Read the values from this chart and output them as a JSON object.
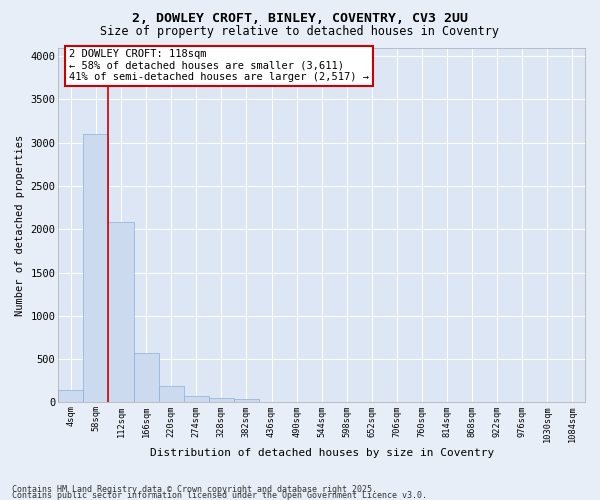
{
  "title_line1": "2, DOWLEY CROFT, BINLEY, COVENTRY, CV3 2UU",
  "title_line2": "Size of property relative to detached houses in Coventry",
  "xlabel": "Distribution of detached houses by size in Coventry",
  "ylabel": "Number of detached properties",
  "bar_values": [
    140,
    3100,
    2080,
    570,
    195,
    75,
    55,
    45,
    0,
    0,
    0,
    0,
    0,
    0,
    0,
    0,
    0,
    0,
    0,
    0,
    0
  ],
  "bar_labels": [
    "4sqm",
    "58sqm",
    "112sqm",
    "166sqm",
    "220sqm",
    "274sqm",
    "328sqm",
    "382sqm",
    "436sqm",
    "490sqm",
    "544sqm",
    "598sqm",
    "652sqm",
    "706sqm",
    "760sqm",
    "814sqm",
    "868sqm",
    "922sqm",
    "976sqm",
    "1030sqm",
    "1084sqm"
  ],
  "bar_color": "#ccdaf0",
  "bar_edge_color": "#8ab0d8",
  "vline_x": 2,
  "vline_color": "#cc0000",
  "annotation_text_line1": "2 DOWLEY CROFT: 118sqm",
  "annotation_text_line2": "← 58% of detached houses are smaller (3,611)",
  "annotation_text_line3": "41% of semi-detached houses are larger (2,517) →",
  "annotation_box_color": "#cc0000",
  "ylim": [
    0,
    4100
  ],
  "yticks": [
    0,
    500,
    1000,
    1500,
    2000,
    2500,
    3000,
    3500,
    4000
  ],
  "fig_bg_color": "#e8eef8",
  "plot_bg_color": "#dce6f5",
  "grid_color": "#ffffff",
  "footer_line1": "Contains HM Land Registry data © Crown copyright and database right 2025.",
  "footer_line2": "Contains public sector information licensed under the Open Government Licence v3.0."
}
